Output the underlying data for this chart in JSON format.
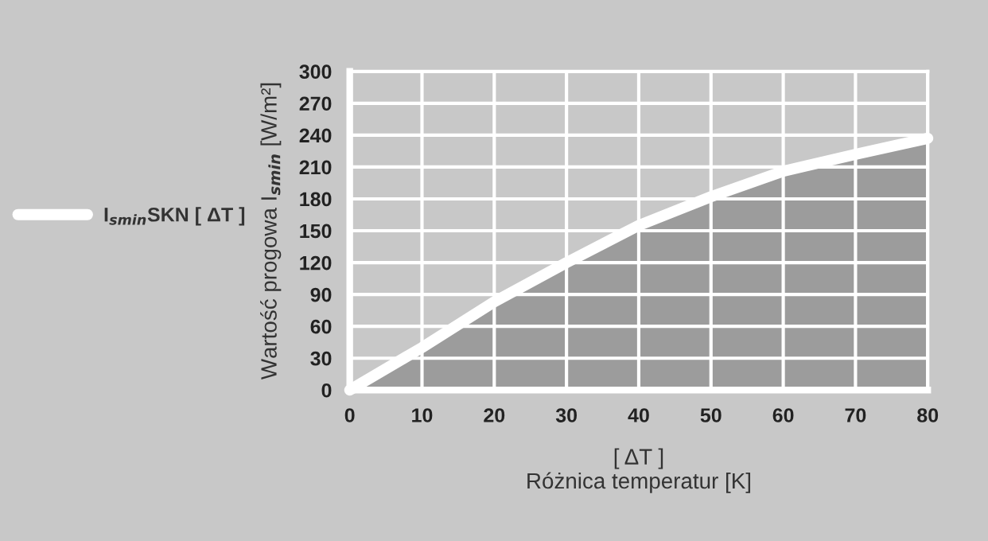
{
  "chart_data": {
    "type": "area",
    "x": [
      0,
      10,
      20,
      30,
      40,
      50,
      60,
      70,
      80
    ],
    "series": [
      {
        "name": "I$_{smin}$SKN [ ΔT ]",
        "color": "#ffffff",
        "values": [
          0,
          40,
          83,
          120,
          155,
          182,
          206,
          222,
          237
        ]
      }
    ],
    "xlabel": "[ ΔT ]\nRóżnica temperatur [K]",
    "ylabel": "Wartość progowa I$_{smin}$ [W/m²]",
    "xlim": [
      0,
      80
    ],
    "xticks": [
      0,
      10,
      20,
      30,
      40,
      50,
      60,
      70,
      80
    ],
    "ylim": [
      0,
      300
    ],
    "yticks": [
      0,
      30,
      60,
      90,
      120,
      150,
      180,
      210,
      240,
      270,
      300
    ],
    "grid": true,
    "legend": "left",
    "line_style": "solid",
    "marker": "none"
  }
}
